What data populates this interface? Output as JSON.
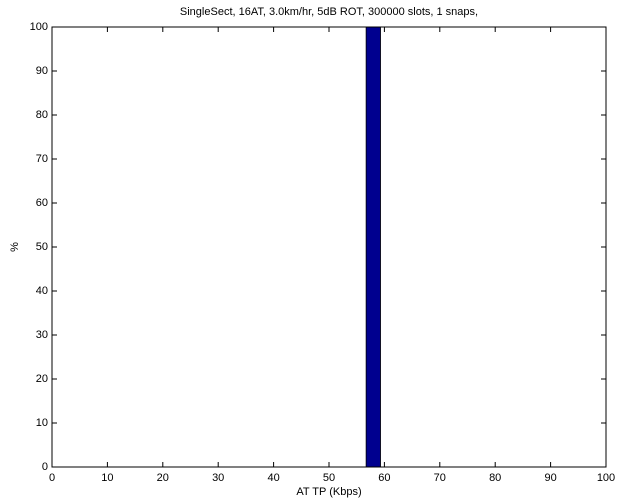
{
  "chart_data": {
    "type": "histogram",
    "title": "SingleSect, 16AT, 3.0km/hr, 5dB ROT, 300000 slots, 1 snaps,",
    "x_label": "AT TP (Kbps)",
    "y_label": "%",
    "bins": [
      56.7,
      59.3
    ],
    "values": [
      100
    ],
    "color": "#00008f",
    "xlim": [
      0,
      100
    ],
    "xticks": [
      0,
      10,
      20,
      30,
      40,
      50,
      60,
      70,
      80,
      90,
      100
    ],
    "ylim": [
      0,
      100
    ],
    "yticks": [
      0,
      10,
      20,
      30,
      40,
      50,
      60,
      70,
      80,
      90,
      100
    ],
    "grid": false
  }
}
